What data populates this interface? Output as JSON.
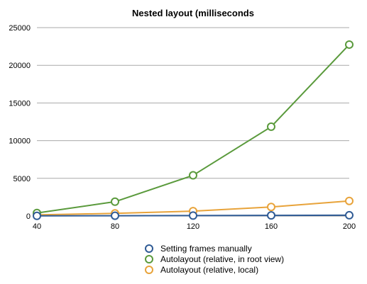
{
  "chart_data": {
    "type": "line",
    "title": "Nested layout (milliseconds",
    "xlabel": "",
    "ylabel": "",
    "x": [
      40,
      80,
      120,
      160,
      200
    ],
    "xlim": [
      40,
      200
    ],
    "ylim": [
      0,
      25000
    ],
    "yticks": [
      0,
      5000,
      10000,
      15000,
      20000,
      25000
    ],
    "grid": true,
    "legend_position": "bottom",
    "series": [
      {
        "name": "Setting frames manually",
        "color": "#2f5b95",
        "values": [
          20,
          40,
          60,
          80,
          100
        ]
      },
      {
        "name": "Autolayout (relative, in root view)",
        "color": "#5a9a3c",
        "values": [
          400,
          1900,
          5400,
          11850,
          22750
        ]
      },
      {
        "name": "Autolayout (relative, local)",
        "color": "#e8a33a",
        "values": [
          150,
          350,
          650,
          1200,
          2000
        ]
      }
    ]
  }
}
